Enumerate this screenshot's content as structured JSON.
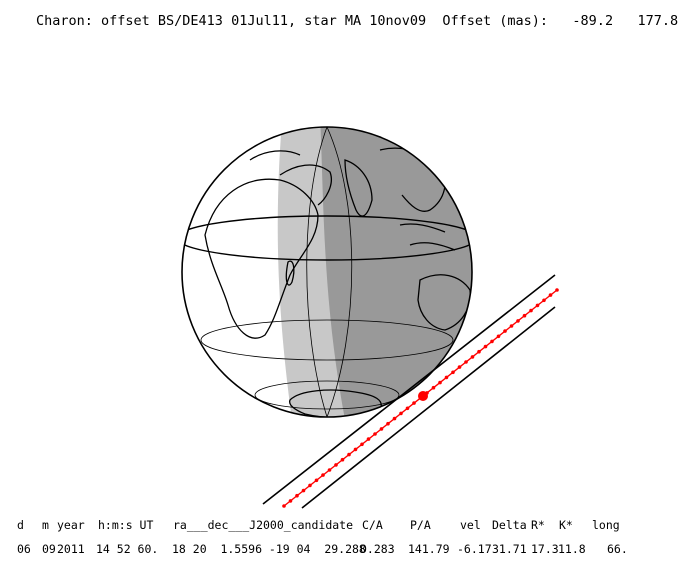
{
  "title": "Charon: offset BS/DE413 01Jul11, star MA 10nov09  Offset (mas):   -89.2   177.8",
  "colors": {
    "night": "#999999",
    "twilight": "#c8c8c8",
    "day": "#ffffff",
    "track": "#ff0000",
    "outline": "#000000"
  },
  "table": {
    "headers": [
      "d",
      "m",
      "year",
      "h:m:s UT",
      "ra___dec___J2000_candidate",
      "C/A",
      "P/A",
      "vel",
      "Delta",
      "R*",
      "K*",
      "long"
    ],
    "values": [
      "06",
      "09",
      "2011",
      "14 52 60.",
      "18 20  1.5596 -19 04  29.288",
      "0.283",
      "141.79",
      "-6.17",
      "31.71",
      "17.3",
      "11.8",
      "66."
    ]
  }
}
